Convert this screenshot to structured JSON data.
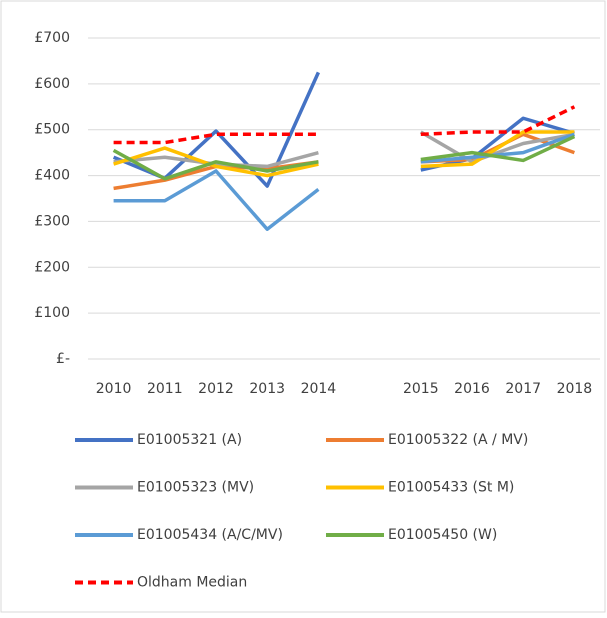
{
  "chart_data": {
    "type": "line",
    "categories": [
      "2010",
      "2011",
      "2012",
      "2013",
      "2014",
      null,
      "2015",
      "2016",
      "2017",
      "2018"
    ],
    "series": [
      {
        "name": "E01005321 (A)",
        "color": "#4472c4",
        "values": [
          440,
          394,
          497,
          377,
          625,
          null,
          412,
          437,
          525,
          492
        ]
      },
      {
        "name": "E01005322 (A / MV)",
        "color": "#ed7d31",
        "values": [
          372,
          390,
          420,
          415,
          430,
          null,
          430,
          435,
          490,
          450
        ]
      },
      {
        "name": "E01005323 (MV)",
        "color": "#a5a5a5",
        "values": [
          430,
          440,
          425,
          420,
          450,
          null,
          495,
          430,
          470,
          490
        ]
      },
      {
        "name": "E01005433 (St M)",
        "color": "#ffc000",
        "values": [
          425,
          460,
          420,
          400,
          425,
          null,
          420,
          425,
          495,
          495
        ]
      },
      {
        "name": "E01005434 (A/C/MV)",
        "color": "#5b9bd5",
        "values": [
          345,
          345,
          410,
          283,
          370,
          null,
          430,
          440,
          450,
          490
        ]
      },
      {
        "name": "E01005450 (W)",
        "color": "#70ad47",
        "values": [
          455,
          393,
          430,
          410,
          430,
          null,
          435,
          450,
          433,
          485
        ]
      },
      {
        "name": "Oldham Median",
        "color": "#ff0000",
        "dashed": true,
        "values": [
          472,
          472,
          490,
          490,
          490,
          null,
          490,
          495,
          495,
          550
        ]
      }
    ],
    "ylim": [
      0,
      700
    ],
    "yticks": [
      {
        "value": 0,
        "label": "£-"
      },
      {
        "value": 100,
        "label": "£100"
      },
      {
        "value": 200,
        "label": "£200"
      },
      {
        "value": 300,
        "label": "£300"
      },
      {
        "value": 400,
        "label": "£400"
      },
      {
        "value": 500,
        "label": "£500"
      },
      {
        "value": 600,
        "label": "£600"
      },
      {
        "value": 700,
        "label": "£700"
      }
    ],
    "grid": true
  }
}
